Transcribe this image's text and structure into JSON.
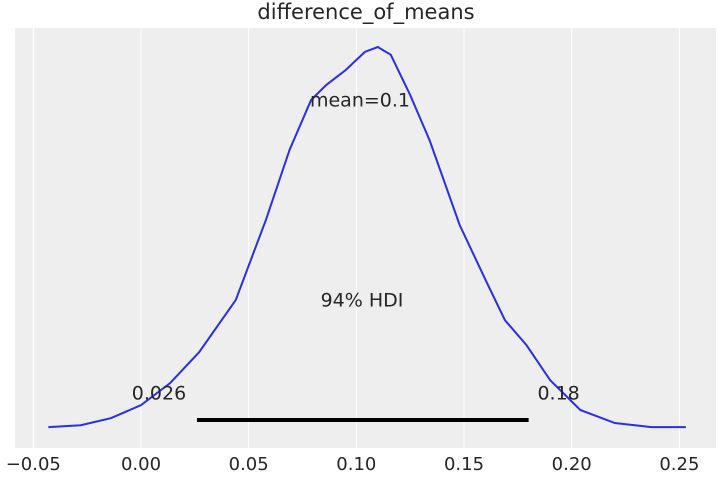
{
  "chart_data": {
    "type": "density",
    "title": "difference_of_means",
    "x": [
      -0.043,
      -0.028,
      -0.014,
      0.0,
      0.0135,
      0.027,
      0.044,
      0.058,
      0.069,
      0.079,
      0.086,
      0.095,
      0.104,
      0.11,
      0.116,
      0.125,
      0.134,
      0.148,
      0.16,
      0.169,
      0.179,
      0.19,
      0.204,
      0.22,
      0.237,
      0.253
    ],
    "values": [
      0,
      0.05,
      0.24,
      0.59,
      1.18,
      2.01,
      3.41,
      5.56,
      7.44,
      8.78,
      9.18,
      9.58,
      10.07,
      10.2,
      9.99,
      8.91,
      7.7,
      5.42,
      3.95,
      2.87,
      2.2,
      1.26,
      0.46,
      0.11,
      0,
      0
    ],
    "color": "#2a2eec",
    "mean_label": "mean=0.1",
    "hdi_label": "94% HDI",
    "hdi": [
      0.026,
      0.18
    ],
    "hdi_color": "#000000",
    "xlim": [
      -0.0585,
      0.267
    ],
    "ylim": [
      -0.56,
      10.71
    ],
    "xticks": [
      {
        "value": -0.05,
        "label": "−0.05"
      },
      {
        "value": 0,
        "label": "0.00"
      },
      {
        "value": 0.05,
        "label": "0.05"
      },
      {
        "value": 0.1,
        "label": "0.10"
      },
      {
        "value": 0.15,
        "label": "0.15"
      },
      {
        "value": 0.2,
        "label": "0.20"
      },
      {
        "value": 0.25,
        "label": "0.25"
      }
    ],
    "grid": true
  }
}
